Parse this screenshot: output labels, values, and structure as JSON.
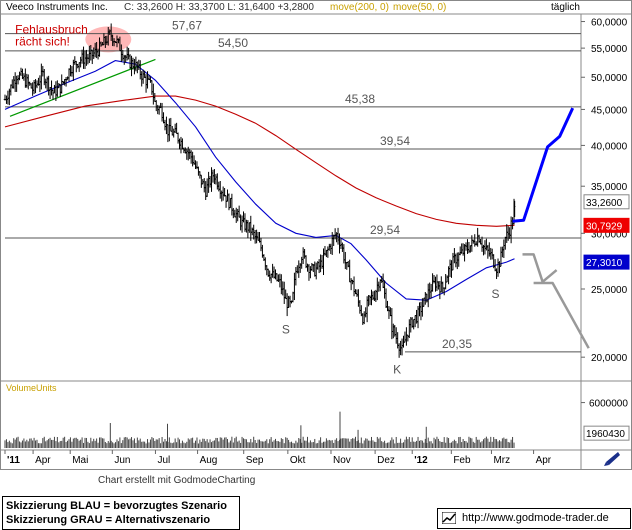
{
  "chart_data": {
    "type": "line",
    "header": {
      "name": "Veeco Instruments Inc.",
      "quote": "C: 33,2600  H: 33,3700  L: 31,6400  +3,2800",
      "ma200": "move(200, 0)",
      "ma50": "move(50, 0)",
      "period": "täglich"
    },
    "y_ticks": [
      60000,
      55000,
      50000,
      45000,
      40000,
      35000,
      30000,
      25000,
      20000
    ],
    "y_tick_labels": [
      "60,0000",
      "55,0000",
      "50,0000",
      "45,0000",
      "40,0000",
      "35,0000",
      "30,0000",
      "25,0000",
      "20,0000"
    ],
    "ylim": [
      18.5,
      61.5
    ],
    "x_labels": [
      "'11",
      "Apr",
      "Mai",
      "Jun",
      "Jul",
      "Aug",
      "Sep",
      "Okt",
      "Nov",
      "Dez",
      "'12",
      "Feb",
      "Mrz",
      "Apr"
    ],
    "x_label_positions_day": [
      0,
      28,
      65,
      107,
      150,
      192,
      238,
      282,
      325,
      369,
      406,
      445,
      485,
      527
    ],
    "levels": [
      {
        "value": 57.67,
        "label": "57,67"
      },
      {
        "value": 54.5,
        "label": "54,50"
      },
      {
        "value": 45.38,
        "label": "45,38"
      },
      {
        "value": 39.54,
        "label": "39,54"
      },
      {
        "value": 29.54,
        "label": "29,54"
      },
      {
        "value": 20.35,
        "label": "20,35"
      }
    ],
    "price_badges": [
      {
        "value": 33.26,
        "label": "33,2600",
        "color": "#ffffff",
        "text_color": "#000000"
      },
      {
        "value": 30.7929,
        "label": "30,7929",
        "color": "#ee0000",
        "text_color": "#ffffff"
      },
      {
        "value": 27.301,
        "label": "27,3010",
        "color": "#0000cc",
        "text_color": "#ffffff"
      }
    ],
    "price_keypoints": [
      [
        0,
        46.5
      ],
      [
        6,
        48.5
      ],
      [
        12,
        50.5
      ],
      [
        20,
        49.5
      ],
      [
        28,
        48
      ],
      [
        38,
        50.5
      ],
      [
        48,
        47.5
      ],
      [
        56,
        48.5
      ],
      [
        65,
        51.5
      ],
      [
        75,
        53
      ],
      [
        85,
        53.5
      ],
      [
        95,
        55
      ],
      [
        105,
        57.6
      ],
      [
        112,
        56
      ],
      [
        118,
        54
      ],
      [
        124,
        52.5
      ],
      [
        130,
        52
      ],
      [
        138,
        50
      ],
      [
        146,
        48.5
      ],
      [
        150,
        45.5
      ],
      [
        156,
        45
      ],
      [
        162,
        42
      ],
      [
        170,
        41.5
      ],
      [
        178,
        40
      ],
      [
        186,
        38.5
      ],
      [
        194,
        36
      ],
      [
        200,
        34.5
      ],
      [
        208,
        36.5
      ],
      [
        214,
        35
      ],
      [
        222,
        33.5
      ],
      [
        230,
        32
      ],
      [
        236,
        31
      ],
      [
        244,
        30.5
      ],
      [
        250,
        29.5
      ],
      [
        256,
        28.5
      ],
      [
        262,
        26.5
      ],
      [
        268,
        26
      ],
      [
        274,
        25.5
      ],
      [
        280,
        24
      ],
      [
        286,
        23.6
      ],
      [
        290,
        26.5
      ],
      [
        296,
        28
      ],
      [
        302,
        27
      ],
      [
        308,
        26.5
      ],
      [
        314,
        27
      ],
      [
        320,
        28
      ],
      [
        325,
        29
      ],
      [
        330,
        30
      ],
      [
        335,
        29
      ],
      [
        340,
        27
      ],
      [
        346,
        25.5
      ],
      [
        352,
        24
      ],
      [
        358,
        22.5
      ],
      [
        362,
        24
      ],
      [
        368,
        24.5
      ],
      [
        374,
        26
      ],
      [
        380,
        24
      ],
      [
        386,
        22
      ],
      [
        392,
        21
      ],
      [
        396,
        20.4
      ],
      [
        400,
        21.5
      ],
      [
        406,
        22.5
      ],
      [
        412,
        23
      ],
      [
        418,
        24
      ],
      [
        424,
        25
      ],
      [
        430,
        25.6
      ],
      [
        436,
        25
      ],
      [
        442,
        26.5
      ],
      [
        448,
        27.5
      ],
      [
        454,
        28
      ],
      [
        460,
        28.5
      ],
      [
        466,
        29
      ],
      [
        472,
        29.8
      ],
      [
        478,
        28.5
      ],
      [
        484,
        28
      ],
      [
        490,
        26.8
      ],
      [
        494,
        27.5
      ],
      [
        498,
        29.5
      ],
      [
        502,
        30
      ],
      [
        505,
        31
      ],
      [
        507,
        31.5
      ],
      [
        508,
        33.3
      ]
    ],
    "ma50_keypoints": [
      [
        0,
        45
      ],
      [
        30,
        47
      ],
      [
        60,
        49
      ],
      [
        90,
        51
      ],
      [
        110,
        52.8
      ],
      [
        130,
        52.2
      ],
      [
        150,
        49.5
      ],
      [
        170,
        46
      ],
      [
        190,
        42.5
      ],
      [
        210,
        38.5
      ],
      [
        230,
        35.5
      ],
      [
        250,
        33
      ],
      [
        270,
        31
      ],
      [
        290,
        30
      ],
      [
        310,
        29.6
      ],
      [
        330,
        29.8
      ],
      [
        345,
        29
      ],
      [
        360,
        27.5
      ],
      [
        380,
        25.5
      ],
      [
        400,
        24.2
      ],
      [
        420,
        24.1
      ],
      [
        440,
        24.8
      ],
      [
        460,
        25.8
      ],
      [
        480,
        26.8
      ],
      [
        500,
        27.3
      ],
      [
        508,
        27.6
      ]
    ],
    "ma200_keypoints": [
      [
        0,
        42.5
      ],
      [
        40,
        44
      ],
      [
        80,
        45.5
      ],
      [
        120,
        46.4
      ],
      [
        150,
        47
      ],
      [
        170,
        47
      ],
      [
        190,
        46.4
      ],
      [
        210,
        45.5
      ],
      [
        230,
        44.3
      ],
      [
        250,
        43
      ],
      [
        270,
        41.3
      ],
      [
        290,
        39.5
      ],
      [
        310,
        37.8
      ],
      [
        330,
        36.2
      ],
      [
        350,
        34.8
      ],
      [
        370,
        33.7
      ],
      [
        390,
        32.8
      ],
      [
        410,
        32
      ],
      [
        430,
        31.4
      ],
      [
        450,
        31
      ],
      [
        470,
        30.8
      ],
      [
        490,
        30.7
      ],
      [
        508,
        30.8
      ]
    ],
    "trendline": [
      [
        5,
        44
      ],
      [
        150,
        53
      ]
    ],
    "blue_scenario": [
      [
        506,
        31.2
      ],
      [
        517,
        31.3
      ],
      [
        541,
        39.8
      ],
      [
        553,
        41.2
      ],
      [
        566,
        45.2
      ]
    ],
    "gray_scenario_a": [
      [
        516,
        28
      ],
      [
        527,
        28
      ],
      [
        536,
        25.6
      ],
      [
        550,
        26.6
      ]
    ],
    "gray_scenario_b": [
      [
        527,
        25.5
      ],
      [
        546,
        25.5
      ],
      [
        582,
        20.6
      ]
    ],
    "volume": {
      "ylim": [
        0,
        7000000
      ],
      "ticks": [
        6000000
      ],
      "tick_labels": [
        "6000000"
      ],
      "last_value": 1960430,
      "last_label": "1960430",
      "spikes": [
        [
          105,
          3300000
        ],
        [
          162,
          3200000
        ],
        [
          295,
          3000000
        ],
        [
          334,
          4800000
        ],
        [
          352,
          2400000
        ],
        [
          420,
          2800000
        ]
      ]
    },
    "annotations": [
      {
        "text": "Fehlausbruch",
        "day": 48,
        "value": 58.5
      },
      {
        "text": "rächt sich!",
        "day": 48,
        "value": 56.2
      },
      {
        "text": "S",
        "day": 280,
        "value": 21.9
      },
      {
        "text": "K",
        "day": 391,
        "value": 19.2
      },
      {
        "text": "S",
        "day": 489,
        "value": 24.6
      }
    ],
    "volume_label": "VolumeUnits"
  },
  "footer": {
    "created": "Chart erstellt mit GodmodeCharting",
    "legend_blue": "Skizzierung BLAU = bevorzugtes Szenario",
    "legend_gray": "Skizzierung GRAU = Alternativszenario",
    "credit": "http://www.godmode-trader.de"
  },
  "colors": {
    "price": "#000000",
    "ma200": "#c00000",
    "ma50": "#0000cc",
    "trendline": "#009900",
    "scenario_blue": "#0000ff",
    "scenario_gray": "#999999",
    "header_ma": "#c8a000",
    "highlight": "#ffaaaa"
  }
}
